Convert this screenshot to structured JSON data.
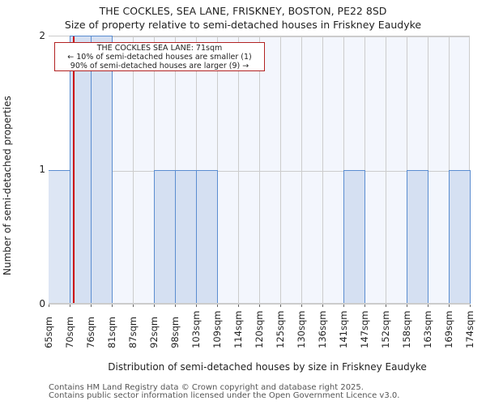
{
  "header": {
    "title": "THE COCKLES, SEA LANE, FRISKNEY, BOSTON, PE22 8SD",
    "subtitle": "Size of property relative to semi-detached houses in Friskney Eaudyke"
  },
  "annotation": {
    "line1": "THE COCKLES SEA LANE: 71sqm",
    "line2": "← 10% of semi-detached houses are smaller (1)",
    "line3": "90% of semi-detached houses are larger (9) →"
  },
  "axes": {
    "xlabel": "Distribution of semi-detached houses by size in Friskney Eaudyke",
    "ylabel": "Number of semi-detached properties",
    "yticks": [
      "0",
      "1",
      "2"
    ]
  },
  "footer": {
    "line1": "Contains HM Land Registry data © Crown copyright and database right 2025.",
    "line2": "Contains public sector information licensed under the Open Government Licence v3.0."
  },
  "colors": {
    "bar_fill": "#d5e0f2",
    "bar_edge": "#5b8dd0",
    "subject_line": "#cc0000",
    "plot_bg": "#f3f6fd"
  },
  "chart_data": {
    "type": "bar",
    "title": "THE COCKLES, SEA LANE, FRISKNEY, BOSTON, PE22 8SD",
    "subtitle": "Size of property relative to semi-detached houses in Friskney Eaudyke",
    "xlabel": "Distribution of semi-detached houses by size in Friskney Eaudyke",
    "ylabel": "Number of semi-detached properties",
    "categories": [
      "65sqm",
      "70sqm",
      "76sqm",
      "81sqm",
      "87sqm",
      "92sqm",
      "98sqm",
      "103sqm",
      "109sqm",
      "114sqm",
      "120sqm",
      "125sqm",
      "130sqm",
      "136sqm",
      "141sqm",
      "147sqm",
      "152sqm",
      "158sqm",
      "163sqm",
      "169sqm"
    ],
    "bin_edges": [
      "65sqm",
      "70sqm",
      "76sqm",
      "81sqm",
      "87sqm",
      "92sqm",
      "98sqm",
      "103sqm",
      "109sqm",
      "114sqm",
      "120sqm",
      "125sqm",
      "130sqm",
      "136sqm",
      "141sqm",
      "147sqm",
      "152sqm",
      "158sqm",
      "163sqm",
      "169sqm",
      "174sqm"
    ],
    "values": [
      1,
      2,
      2,
      0,
      0,
      1,
      1,
      1,
      0,
      0,
      0,
      0,
      0,
      0,
      1,
      0,
      0,
      1,
      0,
      1
    ],
    "ylim": [
      0,
      2
    ],
    "grid": true,
    "subject_value": 71,
    "subject_label": "THE COCKLES SEA LANE: 71sqm"
  }
}
